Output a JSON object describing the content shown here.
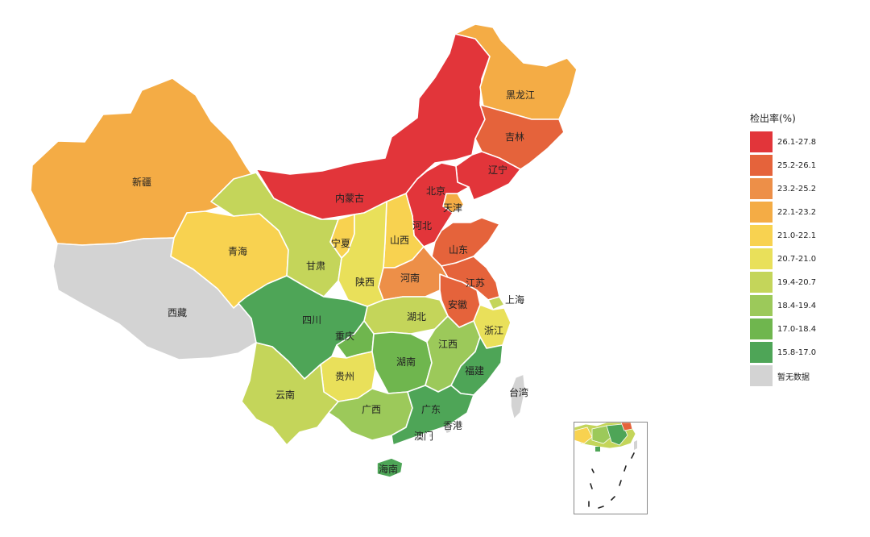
{
  "legend": {
    "title": "检出率(%)",
    "bins": [
      {
        "label": "26.1-27.8",
        "color": "#e2353a"
      },
      {
        "label": "25.2-26.1",
        "color": "#e5633b"
      },
      {
        "label": "23.2-25.2",
        "color": "#ed8f48"
      },
      {
        "label": "22.1-23.2",
        "color": "#f4ac45"
      },
      {
        "label": "21.0-22.1",
        "color": "#f8d250"
      },
      {
        "label": "20.7-21.0",
        "color": "#e9e05a"
      },
      {
        "label": "19.4-20.7",
        "color": "#c4d55a"
      },
      {
        "label": "18.4-19.4",
        "color": "#9cc95a"
      },
      {
        "label": "17.0-18.4",
        "color": "#6fb64e"
      },
      {
        "label": "15.8-17.0",
        "color": "#4ea557"
      },
      {
        "label": "暂无数据",
        "color": "#d3d3d3"
      }
    ]
  },
  "provinces": [
    {
      "name": "黑龙江",
      "bin": 3
    },
    {
      "name": "吉林",
      "bin": 1
    },
    {
      "name": "辽宁",
      "bin": 0
    },
    {
      "name": "内蒙古",
      "bin": 0
    },
    {
      "name": "新疆",
      "bin": 3
    },
    {
      "name": "西藏",
      "bin": 10
    },
    {
      "name": "青海",
      "bin": 4
    },
    {
      "name": "甘肃",
      "bin": 6
    },
    {
      "name": "宁夏",
      "bin": 4
    },
    {
      "name": "陕西",
      "bin": 5
    },
    {
      "name": "山西",
      "bin": 4
    },
    {
      "name": "北京",
      "bin": 0
    },
    {
      "name": "天津",
      "bin": 3
    },
    {
      "name": "河北",
      "bin": 0
    },
    {
      "name": "山东",
      "bin": 1
    },
    {
      "name": "河南",
      "bin": 2
    },
    {
      "name": "江苏",
      "bin": 1
    },
    {
      "name": "安徽",
      "bin": 1
    },
    {
      "name": "上海",
      "bin": 6
    },
    {
      "name": "浙江",
      "bin": 5
    },
    {
      "name": "湖北",
      "bin": 6
    },
    {
      "name": "四川",
      "bin": 9
    },
    {
      "name": "重庆",
      "bin": 8
    },
    {
      "name": "贵州",
      "bin": 5
    },
    {
      "name": "湖南",
      "bin": 8
    },
    {
      "name": "江西",
      "bin": 7
    },
    {
      "name": "福建",
      "bin": 9
    },
    {
      "name": "云南",
      "bin": 6
    },
    {
      "name": "广西",
      "bin": 7
    },
    {
      "name": "广东",
      "bin": 9
    },
    {
      "name": "海南",
      "bin": 9
    },
    {
      "name": "香港",
      "bin": 10
    },
    {
      "name": "澳门",
      "bin": 10
    },
    {
      "name": "台湾",
      "bin": 10
    }
  ]
}
